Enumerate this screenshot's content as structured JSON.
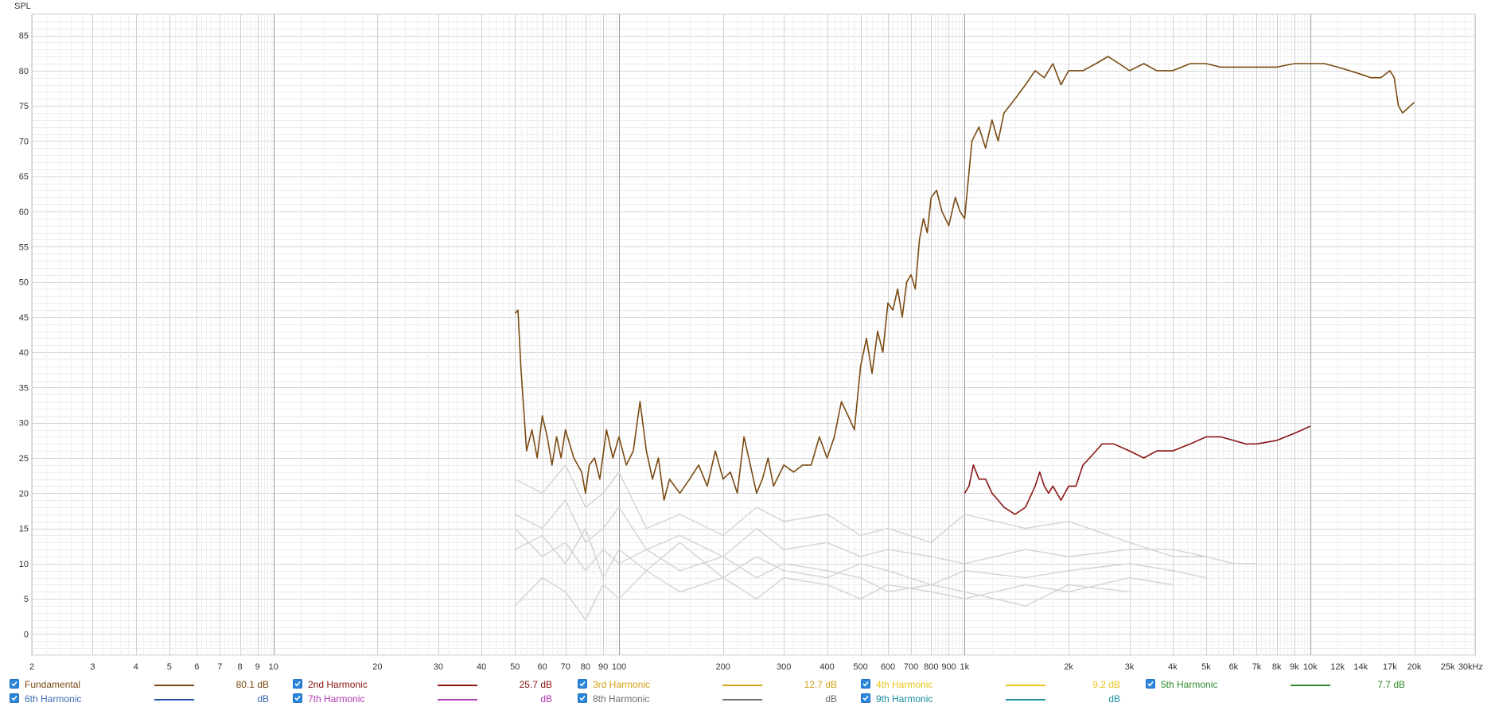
{
  "chart_data": {
    "type": "line",
    "ylabel": "SPL",
    "xscale": "log",
    "xlim": [
      2,
      30000
    ],
    "ylim": [
      -3,
      88
    ],
    "grid": true,
    "x_tick_labels": [
      {
        "x": 2,
        "label": "2"
      },
      {
        "x": 3,
        "label": "3"
      },
      {
        "x": 4,
        "label": "4"
      },
      {
        "x": 5,
        "label": "5"
      },
      {
        "x": 6,
        "label": "6"
      },
      {
        "x": 7,
        "label": "7"
      },
      {
        "x": 8,
        "label": "8"
      },
      {
        "x": 9,
        "label": "9"
      },
      {
        "x": 10,
        "label": "10"
      },
      {
        "x": 20,
        "label": "20"
      },
      {
        "x": 30,
        "label": "30"
      },
      {
        "x": 40,
        "label": "40"
      },
      {
        "x": 50,
        "label": "50"
      },
      {
        "x": 60,
        "label": "60"
      },
      {
        "x": 70,
        "label": "70"
      },
      {
        "x": 80,
        "label": "80"
      },
      {
        "x": 90,
        "label": "90"
      },
      {
        "x": 100,
        "label": "100"
      },
      {
        "x": 200,
        "label": "200"
      },
      {
        "x": 300,
        "label": "300"
      },
      {
        "x": 400,
        "label": "400"
      },
      {
        "x": 500,
        "label": "500"
      },
      {
        "x": 600,
        "label": "600"
      },
      {
        "x": 700,
        "label": "700"
      },
      {
        "x": 800,
        "label": "800"
      },
      {
        "x": 900,
        "label": "900"
      },
      {
        "x": 1000,
        "label": "1k"
      },
      {
        "x": 2000,
        "label": "2k"
      },
      {
        "x": 3000,
        "label": "3k"
      },
      {
        "x": 4000,
        "label": "4k"
      },
      {
        "x": 5000,
        "label": "5k"
      },
      {
        "x": 6000,
        "label": "6k"
      },
      {
        "x": 7000,
        "label": "7k"
      },
      {
        "x": 8000,
        "label": "8k"
      },
      {
        "x": 9000,
        "label": "9k"
      },
      {
        "x": 10000,
        "label": "10k"
      },
      {
        "x": 12000,
        "label": "12k"
      },
      {
        "x": 14000,
        "label": "14k"
      },
      {
        "x": 17000,
        "label": "17k"
      },
      {
        "x": 20000,
        "label": "20k"
      },
      {
        "x": 25000,
        "label": "25k"
      },
      {
        "x": 30000,
        "label": "30kHz"
      }
    ],
    "y_ticks": [
      0,
      5,
      10,
      15,
      20,
      25,
      30,
      35,
      40,
      45,
      50,
      55,
      60,
      65,
      70,
      75,
      80,
      85
    ],
    "series": [
      {
        "name": "Fundamental",
        "color": "#7a4a12",
        "x": [
          50,
          51,
          52,
          54,
          56,
          58,
          60,
          62,
          64,
          66,
          68,
          70,
          72,
          74,
          76,
          78,
          80,
          82,
          85,
          88,
          92,
          96,
          100,
          105,
          110,
          115,
          120,
          125,
          130,
          135,
          140,
          150,
          160,
          170,
          180,
          190,
          200,
          210,
          220,
          230,
          240,
          250,
          260,
          270,
          280,
          300,
          320,
          340,
          360,
          380,
          400,
          420,
          440,
          460,
          480,
          500,
          520,
          540,
          560,
          580,
          600,
          620,
          640,
          660,
          680,
          700,
          720,
          740,
          760,
          780,
          800,
          830,
          860,
          900,
          940,
          970,
          1000,
          1050,
          1100,
          1150,
          1200,
          1250,
          1300,
          1350,
          1400,
          1500,
          1600,
          1700,
          1800,
          1900,
          2000,
          2200,
          2400,
          2600,
          2800,
          3000,
          3300,
          3600,
          4000,
          4500,
          5000,
          5500,
          6000,
          6500,
          7000,
          8000,
          9000,
          10000,
          11000,
          12000,
          13000,
          14000,
          15000,
          16000,
          17000,
          17500,
          18000,
          18500,
          19000,
          20000
        ],
        "y": [
          45.5,
          46,
          38,
          26,
          29,
          25,
          31,
          28,
          24,
          28,
          25,
          29,
          27,
          25,
          24,
          23,
          20,
          24,
          25,
          22,
          29,
          25,
          28,
          24,
          26,
          33,
          26,
          22,
          25,
          19,
          22,
          20,
          22,
          24,
          21,
          26,
          22,
          23,
          20,
          28,
          24,
          20,
          22,
          25,
          21,
          24,
          23,
          24,
          24,
          28,
          25,
          28,
          33,
          31,
          29,
          38,
          42,
          37,
          43,
          40,
          47,
          46,
          49,
          45,
          50,
          51,
          49,
          56,
          59,
          57,
          62,
          63,
          60,
          58,
          62,
          60,
          59,
          70,
          72,
          69,
          73,
          70,
          74,
          75,
          76,
          78,
          80,
          79,
          81,
          78,
          80,
          80,
          81,
          82,
          81,
          80,
          81,
          80,
          80,
          81,
          81,
          80.5,
          80.5,
          80.5,
          80.5,
          80.5,
          81,
          81,
          81,
          80.5,
          80,
          79.5,
          79,
          79,
          80,
          79,
          75,
          74,
          74.5,
          75.5
        ]
      },
      {
        "name": "2nd Harmonic",
        "color": "#8a1414",
        "x": [
          1000,
          1030,
          1060,
          1100,
          1150,
          1200,
          1250,
          1300,
          1400,
          1500,
          1600,
          1650,
          1700,
          1750,
          1800,
          1900,
          2000,
          2100,
          2200,
          2300,
          2400,
          2500,
          2700,
          3000,
          3300,
          3600,
          4000,
          4500,
          5000,
          5500,
          6000,
          6500,
          7000,
          8000,
          9000,
          10000
        ],
        "y": [
          20,
          21,
          24,
          22,
          22,
          20,
          19,
          18,
          17,
          18,
          21,
          23,
          21,
          20,
          21,
          19,
          21,
          21,
          24,
          25,
          26,
          27,
          27,
          26,
          25,
          26,
          26,
          27,
          28,
          28,
          27.5,
          27,
          27,
          27.5,
          28.5,
          29.5
        ]
      },
      {
        "name": "Background harmonic traces",
        "color": "#d3d3d3",
        "traces": [
          {
            "x": [
              50,
              60,
              70,
              80,
              90,
              100,
              120,
              150,
              200,
              250,
              300,
              400,
              500,
              600,
              800,
              1000,
              1500,
              2000,
              3000,
              4000,
              5000
            ],
            "y": [
              22,
              20,
              24,
              18,
              20,
              23,
              15,
              17,
              14,
              18,
              16,
              17,
              14,
              15,
              13,
              17,
              15,
              16,
              13,
              11,
              11
            ]
          },
          {
            "x": [
              50,
              60,
              70,
              80,
              90,
              100,
              120,
              150,
              200,
              250,
              300,
              400,
              500,
              600,
              800,
              1000,
              1500,
              2000,
              3000,
              4000,
              5000,
              6000,
              7000
            ],
            "y": [
              17,
              15,
              19,
              13,
              15,
              18,
              12,
              14,
              11,
              15,
              12,
              13,
              11,
              12,
              11,
              10,
              12,
              11,
              12,
              12,
              11,
              10,
              10
            ]
          },
          {
            "x": [
              50,
              60,
              70,
              80,
              90,
              100,
              120,
              150,
              200,
              250,
              300,
              400,
              500,
              600,
              800,
              1000,
              1500,
              2000,
              3000,
              4000,
              5000
            ],
            "y": [
              12,
              14,
              10,
              15,
              8,
              12,
              9,
              13,
              8,
              11,
              9,
              8,
              10,
              9,
              7,
              9,
              8,
              9,
              10,
              9,
              8
            ]
          },
          {
            "x": [
              50,
              60,
              70,
              80,
              90,
              100,
              120,
              150,
              200,
              250,
              300,
              400,
              500,
              600,
              800,
              1000,
              1500,
              2000,
              3000,
              4000
            ],
            "y": [
              4,
              8,
              6,
              2,
              7,
              5,
              9,
              6,
              8,
              5,
              8,
              7,
              5,
              7,
              6,
              5,
              7,
              6,
              8,
              7
            ]
          },
          {
            "x": [
              50,
              60,
              70,
              80,
              90,
              100,
              120,
              150,
              200,
              250,
              300,
              400,
              500,
              600,
              800,
              1000,
              1500,
              2000,
              3000
            ],
            "y": [
              15,
              11,
              13,
              9,
              12,
              10,
              12,
              9,
              11,
              8,
              10,
              9,
              8,
              6,
              7,
              6,
              4,
              7,
              6
            ]
          }
        ]
      }
    ],
    "legend": [
      {
        "name": "Fundamental",
        "color": "#7a4a12",
        "value": "80.1 dB",
        "label_color": "#7a4a12",
        "value_color": "#7a4a12"
      },
      {
        "name": "2nd Harmonic",
        "color": "#8a1414",
        "value": "25.7 dB",
        "label_color": "#8a1414",
        "value_color": "#8a1414"
      },
      {
        "name": "3rd Harmonic",
        "color": "#d4a017",
        "value": "12.7 dB",
        "label_color": "#d4a017",
        "value_color": "#d4a017"
      },
      {
        "name": "4th Harmonic",
        "color": "#e6c619",
        "value": "9.2 dB",
        "label_color": "#e6c619",
        "value_color": "#e6c619"
      },
      {
        "name": "5th Harmonic",
        "color": "#2e8b2e",
        "value": "7.7 dB",
        "label_color": "#2e8b2e",
        "value_color": "#2e8b2e"
      },
      {
        "name": "6th Harmonic",
        "color": "#1f4fa3",
        "value": "dB",
        "label_color": "#3b6db5",
        "value_color": "#3b6db5"
      },
      {
        "name": "7th Harmonic",
        "color": "#b03ab0",
        "value": "dB",
        "label_color": "#b03ab0",
        "value_color": "#b03ab0"
      },
      {
        "name": "8th Harmonic",
        "color": "#6e6e6e",
        "value": "dB",
        "label_color": "#6e6e6e",
        "value_color": "#6e6e6e"
      },
      {
        "name": "9th Harmonic",
        "color": "#1a8f9f",
        "value": "dB",
        "label_color": "#1a8f9f",
        "value_color": "#1a8f9f"
      }
    ]
  }
}
